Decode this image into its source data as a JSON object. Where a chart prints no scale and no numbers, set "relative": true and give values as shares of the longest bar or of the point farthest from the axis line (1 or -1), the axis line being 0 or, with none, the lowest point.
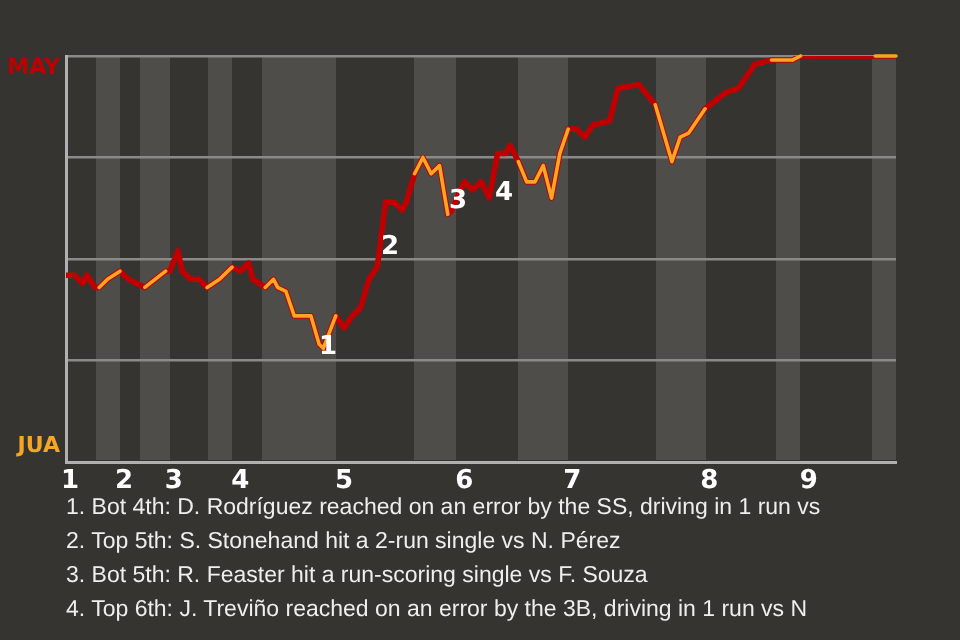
{
  "chart_data": {
    "type": "line",
    "relative": true,
    "categories": [
      null,
      "1",
      null,
      null,
      null,
      null,
      null,
      null,
      null,
      null,
      null,
      null,
      null,
      null,
      "2",
      null,
      null,
      null,
      null,
      null,
      null,
      null,
      null,
      null,
      null,
      null,
      "3",
      null,
      null,
      null,
      null,
      null,
      null,
      null,
      null,
      null,
      null,
      null,
      null,
      null,
      null,
      null,
      "4",
      null,
      null,
      null,
      null,
      null,
      null,
      null,
      null,
      null,
      null,
      null,
      null,
      null,
      null,
      null,
      null,
      null,
      null,
      null,
      null,
      null,
      null,
      null,
      null,
      "5",
      null,
      null,
      null,
      null,
      null,
      null,
      null,
      null,
      null,
      null,
      null,
      null,
      null,
      null,
      null,
      null,
      null,
      null,
      null,
      null,
      null,
      null,
      null,
      null,
      null,
      null,
      null,
      null,
      "6",
      null,
      null,
      null,
      null,
      null,
      null,
      null,
      null,
      null,
      null,
      null,
      null,
      null,
      null,
      null,
      null,
      null,
      null,
      null,
      null,
      null,
      null,
      null,
      null,
      null,
      "7",
      null,
      null,
      null,
      null,
      null,
      null,
      null,
      null,
      null,
      null,
      null,
      null,
      null,
      null,
      null,
      null,
      null,
      null,
      null,
      null,
      null,
      null,
      null,
      null,
      null,
      null,
      null,
      null,
      null,
      null,
      null,
      null,
      "8",
      null,
      null,
      null,
      null,
      null,
      null,
      null,
      null,
      null,
      null,
      null,
      null,
      null,
      null,
      null,
      null,
      null,
      null,
      null,
      null,
      null,
      null,
      null,
      "9",
      null,
      null,
      null,
      null,
      null,
      null,
      null,
      null,
      null,
      null,
      null,
      null,
      null,
      null,
      null,
      null,
      null,
      null,
      null,
      null,
      null
    ],
    "series": [
      {
        "name": "MAY",
        "color": "#c00000",
        "values": [
          0.46,
          null,
          0.46,
          null,
          0.44,
          0.46,
          null,
          0.43,
          0.43,
          null,
          0.45,
          null,
          null,
          0.47,
          null,
          0.45,
          null,
          null,
          null,
          0.43,
          null,
          null,
          null,
          null,
          0.47,
          0.47,
          null,
          0.52,
          0.47,
          null,
          0.45,
          null,
          0.45,
          0.44,
          0.43,
          null,
          null,
          0.45,
          null,
          null,
          0.48,
          null,
          0.47,
          null,
          0.49,
          0.45,
          null,
          null,
          0.43,
          null,
          0.45,
          0.43,
          null,
          0.42,
          null,
          0.36,
          null,
          null,
          null,
          0.36,
          null,
          0.29,
          0.28,
          null,
          null,
          0.36,
          null,
          0.33,
          null,
          0.36,
          null,
          0.38,
          null,
          0.45,
          null,
          0.48,
          null,
          0.64,
          null,
          0.64,
          null,
          0.62,
          0.64,
          null,
          0.71,
          null,
          0.75,
          null,
          0.71,
          null,
          0.73,
          null,
          0.61,
          0.62,
          null,
          0.67,
          0.69,
          null,
          0.67,
          null,
          0.69,
          null,
          0.65,
          null,
          0.76,
          null,
          0.76,
          0.78,
          null,
          0.74,
          null,
          0.69,
          null,
          0.69,
          null,
          0.73,
          null,
          0.65,
          null,
          0.76,
          null,
          0.82,
          null,
          0.82,
          null,
          0.8,
          null,
          0.83,
          null,
          null,
          null,
          0.84,
          null,
          0.92,
          null,
          null,
          null,
          null,
          0.93,
          null,
          null,
          null,
          0.88,
          null,
          null,
          null,
          0.74,
          null,
          0.8,
          null,
          0.81,
          null,
          null,
          null,
          0.87,
          null,
          null,
          null,
          null,
          0.91,
          null,
          null,
          0.92,
          null,
          null,
          null,
          0.98,
          null,
          null,
          null,
          0.99,
          null,
          null,
          null,
          null,
          0.99,
          null,
          1,
          null,
          null,
          null,
          null,
          null,
          null,
          null,
          null,
          null,
          null,
          null,
          null,
          null,
          null,
          null,
          null,
          1,
          1,
          null,
          null,
          null,
          null,
          1
        ]
      },
      {
        "name": "JUA",
        "color": "#f5a623",
        "values": [
          null,
          null,
          null,
          null,
          null,
          null,
          null,
          null,
          0.43,
          null,
          0.45,
          null,
          null,
          0.47,
          null,
          null,
          null,
          null,
          null,
          0.43,
          null,
          null,
          null,
          null,
          0.47,
          null,
          null,
          null,
          null,
          null,
          null,
          null,
          null,
          null,
          0.43,
          null,
          null,
          0.45,
          null,
          null,
          0.48,
          null,
          null,
          null,
          null,
          null,
          null,
          null,
          0.43,
          null,
          0.45,
          0.43,
          null,
          0.42,
          null,
          0.36,
          null,
          null,
          null,
          0.36,
          null,
          0.29,
          0.28,
          null,
          null,
          0.36,
          null,
          null,
          null,
          null,
          null,
          null,
          null,
          null,
          null,
          null,
          null,
          null,
          null,
          null,
          null,
          null,
          null,
          null,
          0.71,
          null,
          0.75,
          null,
          0.71,
          null,
          0.73,
          null,
          0.61,
          null,
          null,
          null,
          null,
          null,
          null,
          null,
          null,
          null,
          null,
          null,
          null,
          null,
          null,
          null,
          null,
          0.74,
          null,
          0.69,
          null,
          0.69,
          null,
          0.73,
          null,
          0.65,
          null,
          0.76,
          null,
          0.82,
          null,
          null,
          null,
          null,
          null,
          null,
          null,
          null,
          null,
          null,
          null,
          null,
          null,
          null,
          null,
          null,
          null,
          null,
          null,
          null,
          0.88,
          null,
          null,
          null,
          0.74,
          null,
          0.8,
          null,
          0.81,
          null,
          null,
          null,
          0.87,
          null,
          null,
          null,
          null,
          null,
          null,
          null,
          null,
          null,
          null,
          null,
          null,
          null,
          null,
          null,
          0.99,
          null,
          null,
          null,
          null,
          0.99,
          null,
          1,
          null,
          null,
          null,
          null,
          null,
          null,
          null,
          null,
          null,
          null,
          null,
          null,
          null,
          null,
          null,
          null,
          null,
          1,
          null,
          null,
          null,
          null,
          1
        ]
      }
    ],
    "grid": "y",
    "annotations": [
      "1",
      "2",
      "3",
      "4",
      "1. Bot 4th: D. Rodríguez reached on an error by the SS, driving in 1 run vs",
      "2. Top 5th: S. Stonehand hit a 2-run single vs N. Pérez",
      "3. Bot 5th: R. Feaster hit a run-scoring single vs F. Souza",
      "4. Top 6th: J. Treviño reached on an error by the 3B, driving in 1 run vs N"
    ]
  }
}
